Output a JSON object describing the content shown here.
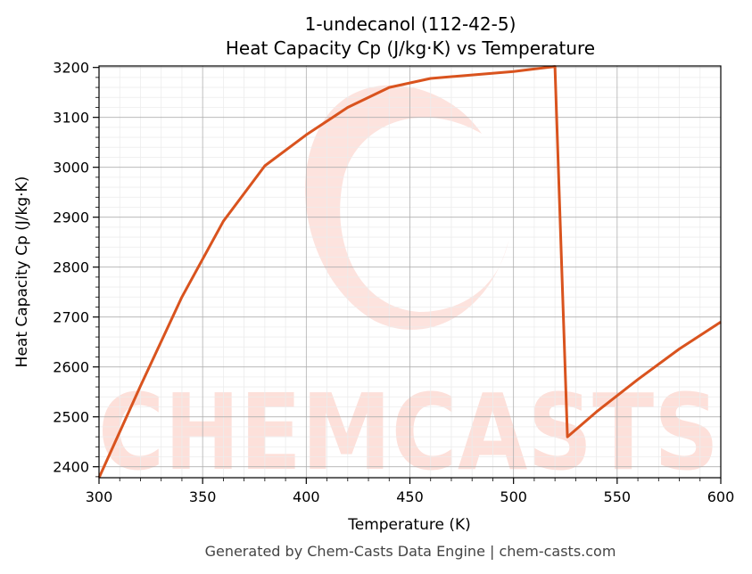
{
  "chart_data": {
    "type": "line",
    "title_line1": "1-undecanol (112-42-5)",
    "title_line2": "Heat Capacity Cp (J/kg·K) vs Temperature",
    "xlabel": "Temperature (K)",
    "ylabel": "Heat Capacity Cp (J/kg·K)",
    "xlim": [
      300,
      600
    ],
    "ylim": [
      2378,
      3203
    ],
    "x_ticks": [
      "300",
      "350",
      "400",
      "450",
      "500",
      "550",
      "600"
    ],
    "y_ticks": [
      "2400",
      "2500",
      "2600",
      "2700",
      "2800",
      "2900",
      "3000",
      "3100",
      "3200"
    ],
    "grid": true,
    "line_color": "#d9531e",
    "series": [
      {
        "x": [
          300,
          320,
          340,
          360,
          380,
          400,
          420,
          440,
          460,
          480,
          500,
          510,
          520,
          526,
          540,
          560,
          580,
          600
        ],
        "y": [
          2378,
          2562,
          2740,
          2892,
          3003,
          3065,
          3120,
          3160,
          3178,
          3185,
          3192,
          3197,
          3202,
          2460,
          2510,
          2575,
          2636,
          2690
        ]
      }
    ]
  },
  "watermark": {
    "text": "CHEMCASTS",
    "color": "#fde0da"
  },
  "footer": "Generated by Chem-Casts Data Engine | chem-casts.com"
}
